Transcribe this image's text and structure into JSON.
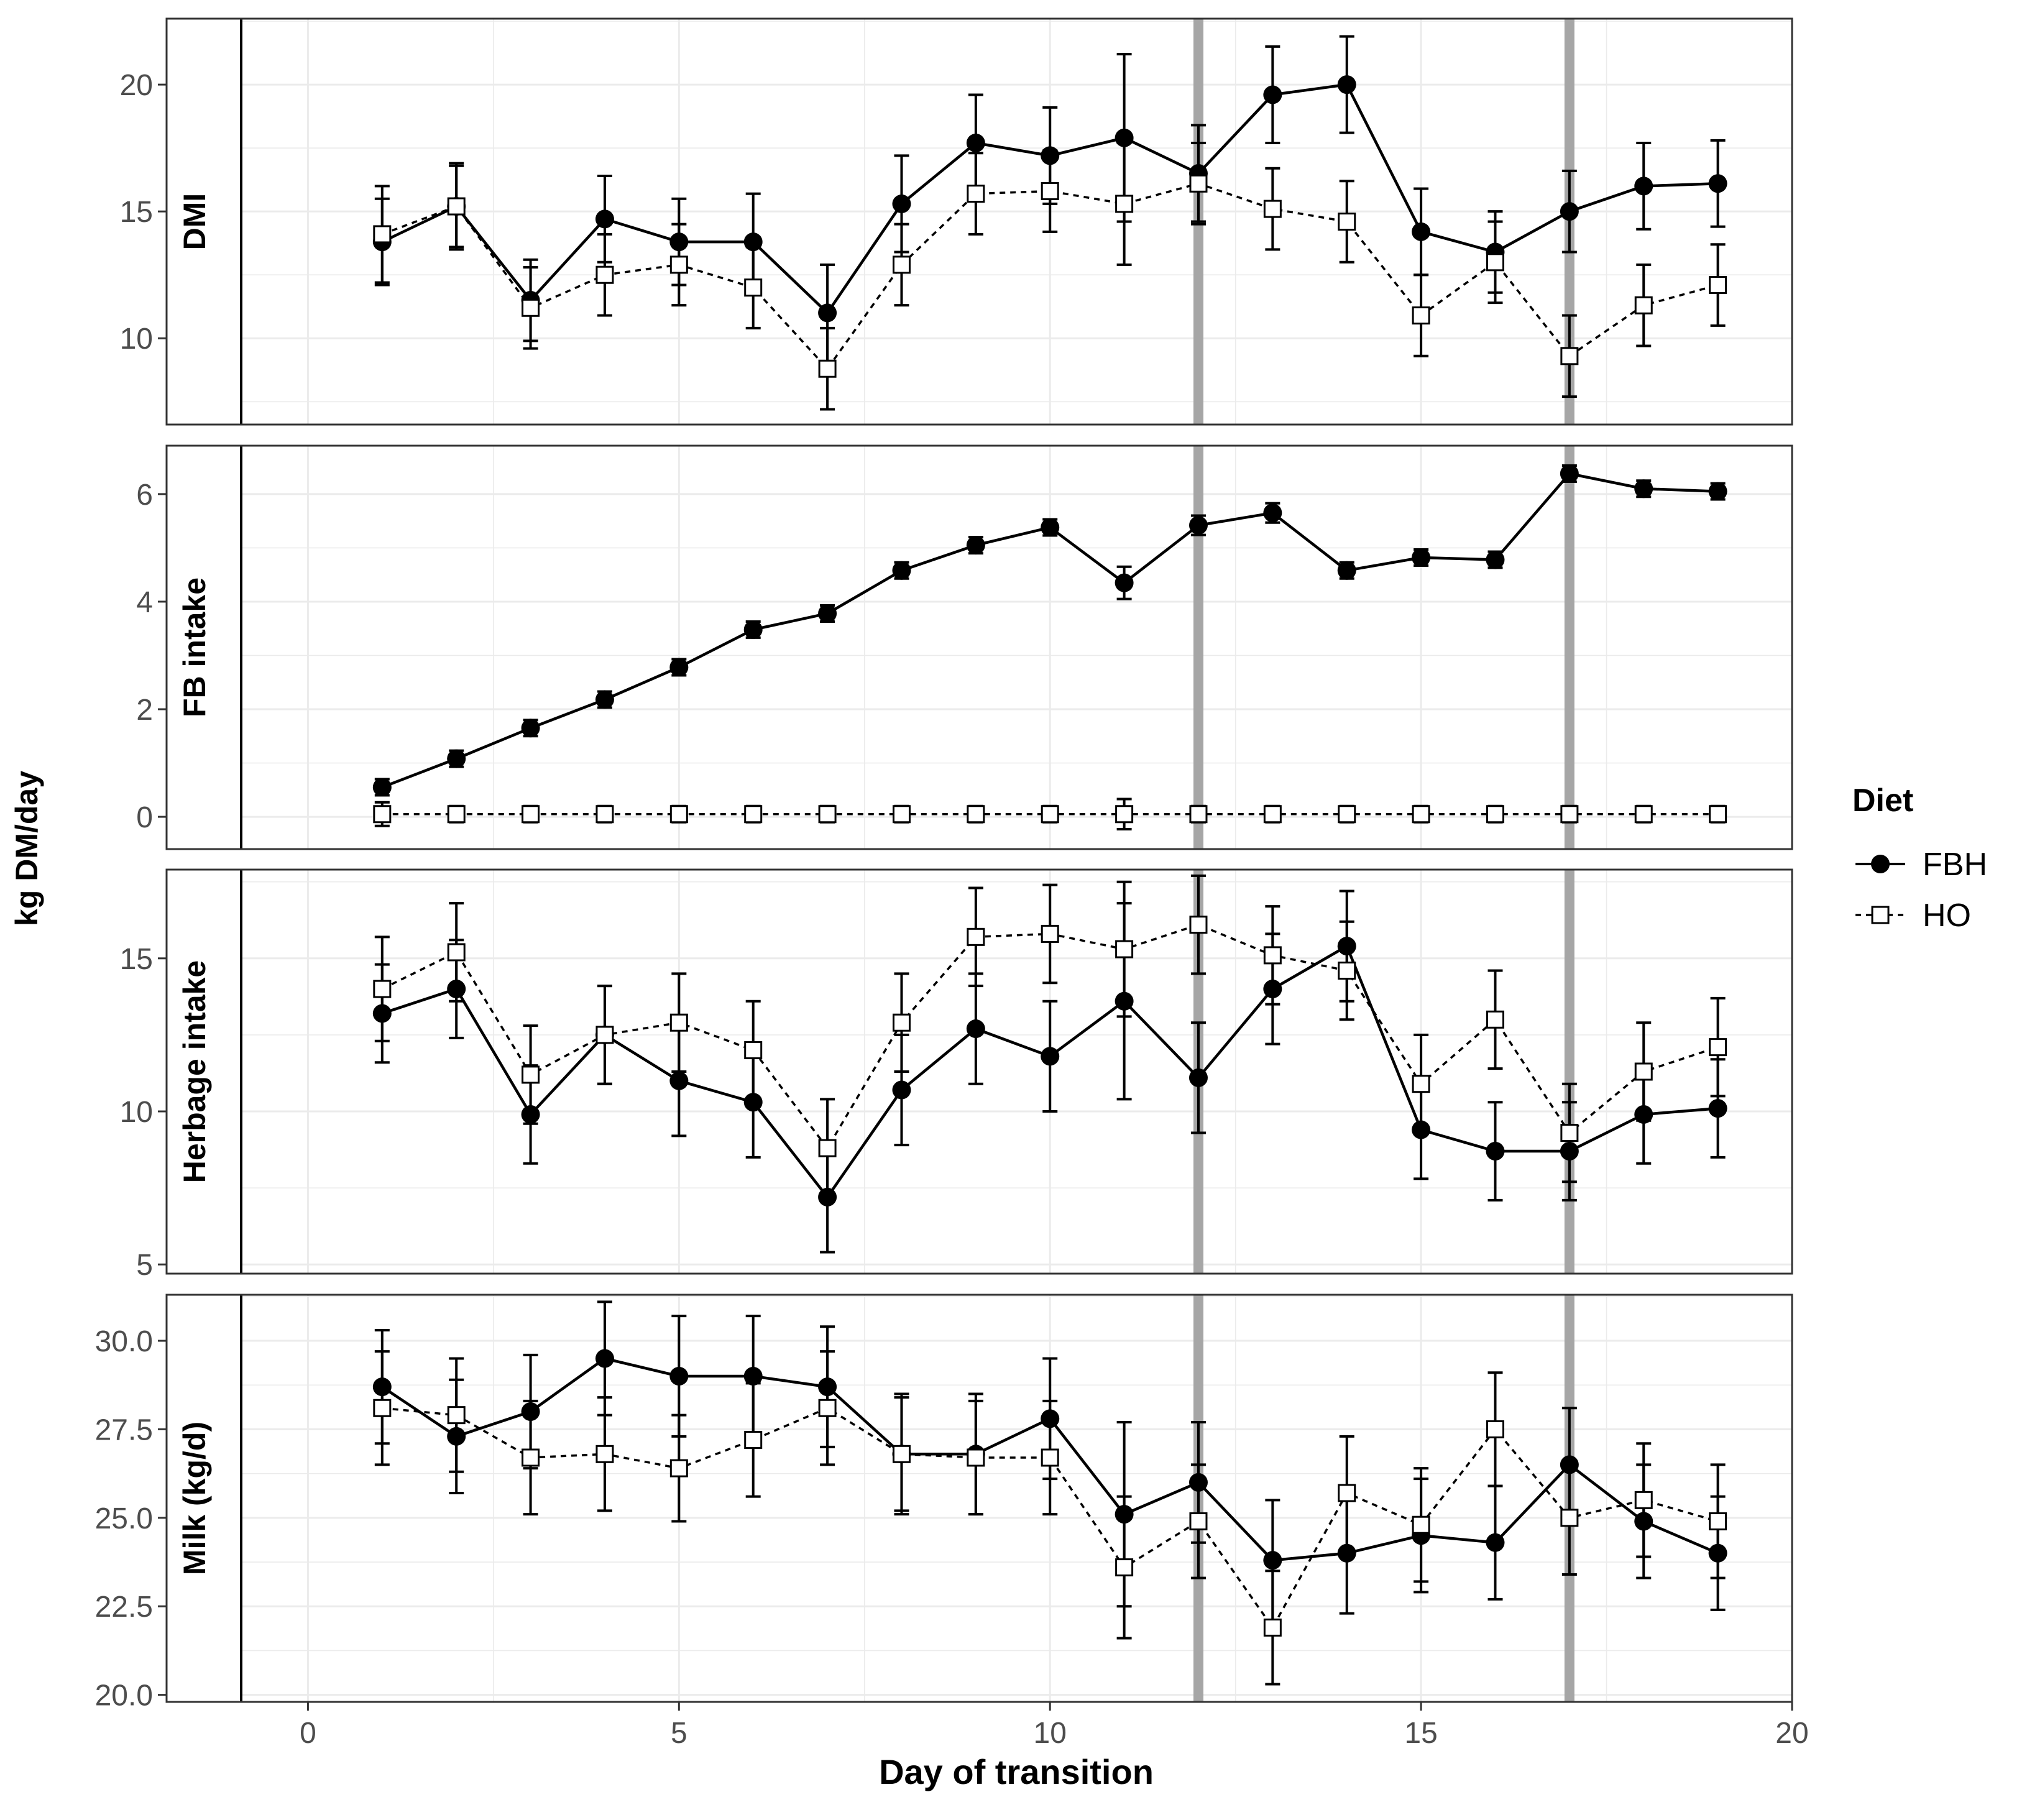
{
  "figure": {
    "ylabel": "kg DM/day",
    "xlabel": "Day of transition",
    "x_ticks": [
      0,
      5,
      10,
      15,
      20
    ],
    "xlim": [
      -0.9,
      20
    ],
    "legend_title": "Diet",
    "vertical_markers": [
      12,
      17
    ]
  },
  "legend": {
    "title": "Diet",
    "items": [
      {
        "name": "FBH",
        "style": "solid",
        "marker": "filled-circle"
      },
      {
        "name": "HO",
        "style": "dashed",
        "marker": "open-square"
      }
    ]
  },
  "colors": {
    "FBH": "#000000",
    "HO": "#000000",
    "marker_line": "#a6a6a6",
    "grid": "#ebebeb",
    "panel_border": "#333333"
  },
  "chart_data": [
    {
      "type": "line",
      "title": "DMI",
      "ylim": [
        6.6,
        22.6
      ],
      "yticks": [
        10,
        15,
        20
      ],
      "ytick_labels": [
        "10",
        "15",
        "20"
      ],
      "x": [
        1,
        2,
        3,
        4,
        5,
        6,
        7,
        8,
        9,
        10,
        11,
        12,
        13,
        14,
        15,
        16,
        17,
        18,
        19
      ],
      "series": [
        {
          "name": "FBH",
          "values": [
            13.8,
            15.2,
            11.5,
            14.7,
            13.8,
            13.8,
            11.0,
            15.3,
            17.7,
            17.2,
            17.9,
            16.5,
            19.6,
            20.0,
            14.2,
            13.4,
            15.0,
            16.0,
            16.1
          ],
          "err": [
            1.7,
            1.6,
            1.6,
            1.7,
            1.7,
            1.9,
            1.9,
            1.9,
            1.9,
            1.9,
            3.3,
            1.9,
            1.9,
            1.9,
            1.7,
            1.6,
            1.6,
            1.7,
            1.7
          ]
        },
        {
          "name": "HO",
          "values": [
            14.1,
            15.2,
            11.2,
            12.5,
            12.9,
            12.0,
            8.8,
            12.9,
            15.7,
            15.8,
            15.3,
            16.1,
            15.1,
            14.6,
            10.9,
            13.0,
            9.3,
            11.3,
            12.1
          ],
          "err": [
            1.9,
            1.7,
            1.6,
            1.6,
            1.6,
            1.6,
            1.6,
            1.6,
            1.6,
            1.6,
            2.4,
            1.6,
            1.6,
            1.6,
            1.6,
            1.6,
            1.6,
            1.6,
            1.6
          ]
        }
      ]
    },
    {
      "type": "line",
      "title": "FB intake",
      "ylim": [
        -0.6,
        6.9
      ],
      "yticks": [
        0,
        2,
        4,
        6
      ],
      "ytick_labels": [
        "0",
        "2",
        "4",
        "6"
      ],
      "x": [
        1,
        2,
        3,
        4,
        5,
        6,
        7,
        8,
        9,
        10,
        11,
        12,
        13,
        14,
        15,
        16,
        17,
        18,
        19
      ],
      "series": [
        {
          "name": "FBH",
          "values": [
            0.55,
            1.08,
            1.65,
            2.18,
            2.78,
            3.48,
            3.78,
            4.58,
            5.05,
            5.38,
            4.35,
            5.42,
            5.65,
            4.58,
            4.82,
            4.78,
            6.38,
            6.1,
            6.05
          ],
          "err": [
            0.15,
            0.15,
            0.15,
            0.15,
            0.15,
            0.15,
            0.15,
            0.15,
            0.15,
            0.15,
            0.3,
            0.18,
            0.18,
            0.15,
            0.15,
            0.15,
            0.15,
            0.15,
            0.15
          ]
        },
        {
          "name": "HO",
          "values": [
            0.05,
            0.05,
            0.05,
            0.05,
            0.05,
            0.05,
            0.05,
            0.05,
            0.05,
            0.05,
            0.05,
            0.05,
            0.05,
            0.05,
            0.05,
            0.05,
            0.05,
            0.05,
            0.05
          ],
          "err": [
            0.22,
            0.15,
            0.15,
            0.15,
            0.15,
            0.15,
            0.15,
            0.15,
            0.15,
            0.15,
            0.28,
            0.15,
            0.15,
            0.15,
            0.15,
            0.15,
            0.15,
            0.15,
            0.15
          ]
        }
      ]
    },
    {
      "type": "line",
      "title": "Herbage intake",
      "ylim": [
        4.7,
        17.9
      ],
      "yticks": [
        5,
        10,
        15
      ],
      "ytick_labels": [
        "5",
        "10",
        "15"
      ],
      "x": [
        1,
        2,
        3,
        4,
        5,
        6,
        7,
        8,
        9,
        10,
        11,
        12,
        13,
        14,
        15,
        16,
        17,
        18,
        19
      ],
      "series": [
        {
          "name": "FBH",
          "values": [
            13.2,
            14.0,
            9.9,
            12.5,
            11.0,
            10.3,
            7.2,
            10.7,
            12.7,
            11.8,
            13.6,
            11.1,
            14.0,
            15.4,
            9.4,
            8.7,
            8.7,
            9.9,
            10.1
          ],
          "err": [
            1.6,
            1.6,
            1.6,
            1.6,
            1.8,
            1.8,
            1.8,
            1.8,
            1.8,
            1.8,
            3.2,
            1.8,
            1.8,
            1.8,
            1.6,
            1.6,
            1.6,
            1.6,
            1.6
          ]
        },
        {
          "name": "HO",
          "values": [
            14.0,
            15.2,
            11.2,
            12.5,
            12.9,
            12.0,
            8.8,
            12.9,
            15.7,
            15.8,
            15.3,
            16.1,
            15.1,
            14.6,
            10.9,
            13.0,
            9.3,
            11.3,
            12.1
          ],
          "err": [
            1.7,
            1.6,
            1.6,
            1.6,
            1.6,
            1.6,
            1.6,
            1.6,
            1.6,
            1.6,
            2.2,
            1.6,
            1.6,
            1.6,
            1.6,
            1.6,
            1.6,
            1.6,
            1.6
          ]
        }
      ]
    },
    {
      "type": "line",
      "title": "Milk (kg/d)",
      "ylim": [
        19.8,
        31.3
      ],
      "yticks": [
        20,
        22.5,
        25,
        27.5,
        30
      ],
      "ytick_labels": [
        "20.0",
        "22.5",
        "25.0",
        "27.5",
        "30.0"
      ],
      "x": [
        1,
        2,
        3,
        4,
        5,
        6,
        7,
        8,
        9,
        10,
        11,
        12,
        13,
        14,
        15,
        16,
        17,
        18,
        19
      ],
      "series": [
        {
          "name": "FBH",
          "values": [
            28.7,
            27.3,
            28.0,
            29.5,
            29.0,
            29.0,
            28.7,
            26.8,
            26.8,
            27.8,
            25.1,
            26.0,
            23.8,
            24.0,
            24.5,
            24.3,
            26.5,
            24.9,
            24.0
          ],
          "err": [
            1.6,
            1.6,
            1.6,
            1.6,
            1.7,
            1.7,
            1.7,
            1.7,
            1.7,
            1.7,
            2.6,
            1.7,
            1.7,
            1.7,
            1.6,
            1.6,
            1.6,
            1.6,
            1.6
          ]
        },
        {
          "name": "HO",
          "values": [
            28.1,
            27.9,
            26.7,
            26.8,
            26.4,
            27.2,
            28.1,
            26.8,
            26.7,
            26.7,
            23.6,
            24.9,
            21.9,
            25.7,
            24.8,
            27.5,
            25.0,
            25.5,
            24.9
          ],
          "err": [
            1.6,
            1.6,
            1.6,
            1.6,
            1.5,
            1.6,
            1.6,
            1.6,
            1.6,
            1.6,
            2.0,
            1.6,
            1.6,
            1.6,
            1.6,
            1.6,
            1.6,
            1.6,
            1.6
          ]
        }
      ]
    }
  ]
}
